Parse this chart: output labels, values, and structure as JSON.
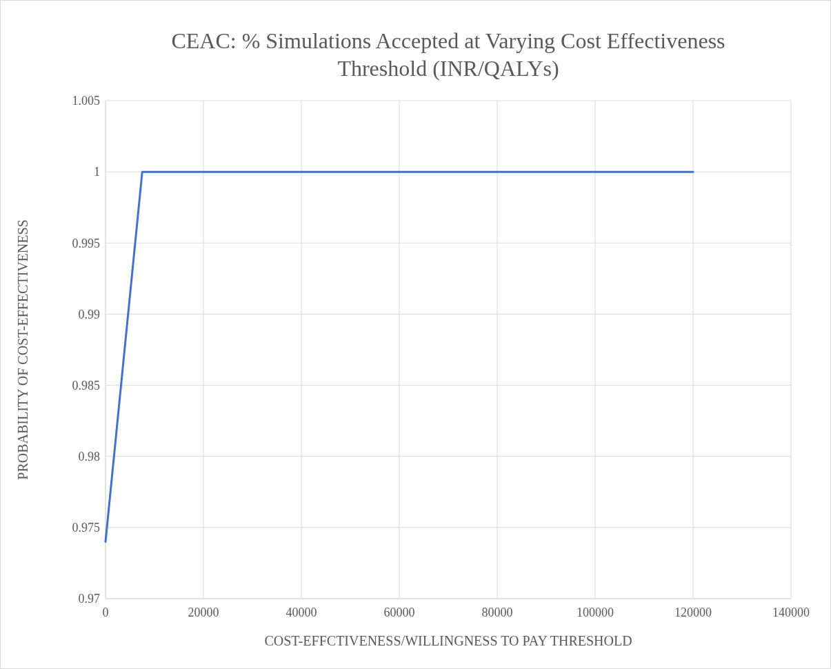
{
  "chart_data": {
    "type": "line",
    "title": "CEAC: % Simulations Accepted at Varying Cost Effectiveness Threshold (INR/QALYs)",
    "xlabel": "COST-EFFCTIVENESS/WILLINGNESS TO PAY THRESHOLD",
    "ylabel": "PROBABILITY OF COST-EFFECTIVENESS",
    "x": [
      0,
      7500,
      120000
    ],
    "series": [
      {
        "color": "#4472c4",
        "values": [
          0.974,
          1,
          1
        ]
      }
    ],
    "xlim": [
      0,
      140000
    ],
    "xticks": [
      0,
      20000,
      40000,
      60000,
      80000,
      100000,
      120000,
      140000
    ],
    "ylim": [
      0.97,
      1.005
    ],
    "yticks": [
      0.97,
      0.975,
      0.98,
      0.985,
      0.99,
      0.995,
      1,
      1.005
    ],
    "grid": true,
    "marker": "none",
    "line_style": "solid"
  }
}
